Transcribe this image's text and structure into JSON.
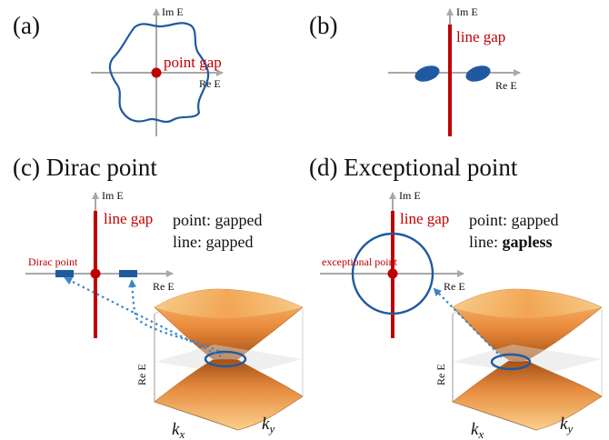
{
  "panels": {
    "a": {
      "label": "(a)",
      "im_axis": "Im E",
      "re_axis": "Re E",
      "gap_label": "point gap"
    },
    "b": {
      "label": "(b)",
      "im_axis": "Im E",
      "re_axis": "Re E",
      "gap_label": "line gap"
    },
    "c": {
      "label": "(c) Dirac point",
      "im_axis": "Im E",
      "re_axis": "Re E",
      "gap_label": "line gap",
      "status_point": "point: gapped",
      "status_line": "line: gapped",
      "marker_label": "Dirac point",
      "surface_axis": "Re E",
      "kx": "k",
      "kx_sub": "x",
      "ky": "k",
      "ky_sub": "y"
    },
    "d": {
      "label": "(d) Exceptional point",
      "im_axis": "Im E",
      "re_axis": "Re E",
      "gap_label": "line gap",
      "status_point": "point: gapped",
      "status_line_prefix": "line: ",
      "status_line_value": "gapless",
      "marker_label": "exceptional point",
      "surface_axis": "Re E",
      "kx": "k",
      "kx_sub": "x",
      "ky": "k",
      "ky_sub": "y"
    }
  },
  "colors": {
    "red": "#c00000",
    "blue": "#1f5aa0",
    "dashed_blue": "#3a86c8",
    "axis_gray": "#a8a8a8",
    "surface_orange": "#f0a040"
  }
}
